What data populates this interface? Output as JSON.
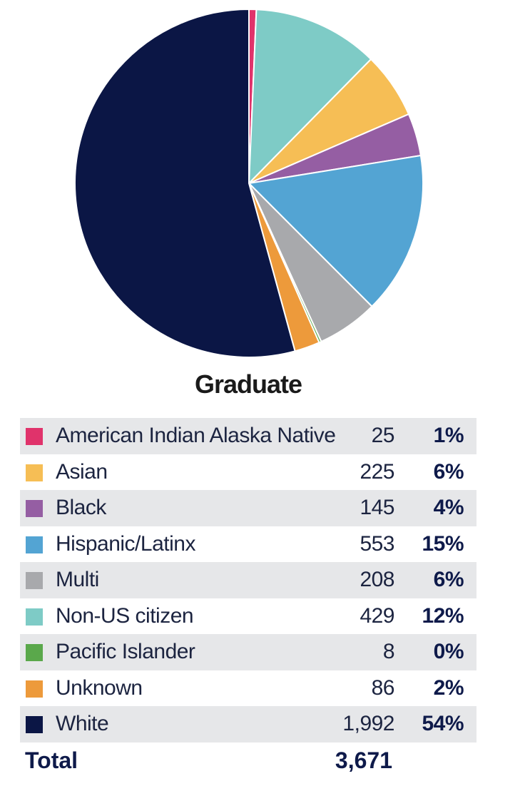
{
  "chart_data": {
    "type": "pie",
    "title": "Graduate",
    "slices": [
      {
        "label": "American Indian Alaska Native",
        "count": "25",
        "value": 25,
        "pct": "1%",
        "color": "#e0336b"
      },
      {
        "label": "Non-US citizen",
        "count": "429",
        "value": 429,
        "pct": "12%",
        "color": "#7ecbc6"
      },
      {
        "label": "Asian",
        "count": "225",
        "value": 225,
        "pct": "6%",
        "color": "#f6be55"
      },
      {
        "label": "Black",
        "count": "145",
        "value": 145,
        "pct": "4%",
        "color": "#955ea3"
      },
      {
        "label": "Hispanic/Latinx",
        "count": "553",
        "value": 553,
        "pct": "15%",
        "color": "#53a4d3"
      },
      {
        "label": "Multi",
        "count": "208",
        "value": 208,
        "pct": "6%",
        "color": "#a8a9ac"
      },
      {
        "label": "Pacific Islander",
        "count": "8",
        "value": 8,
        "pct": "0%",
        "color": "#5aa84b"
      },
      {
        "label": "Unknown",
        "count": "86",
        "value": 86,
        "pct": "2%",
        "color": "#ed9a3b"
      },
      {
        "label": "White",
        "count": "1,992",
        "value": 1992,
        "pct": "54%",
        "color": "#0b1645"
      }
    ],
    "legend_order": [
      "American Indian Alaska Native",
      "Asian",
      "Black",
      "Hispanic/Latinx",
      "Multi",
      "Non-US citizen",
      "Pacific Islander",
      "Unknown",
      "White"
    ],
    "total_label": "Total",
    "total_value": "3,671"
  }
}
